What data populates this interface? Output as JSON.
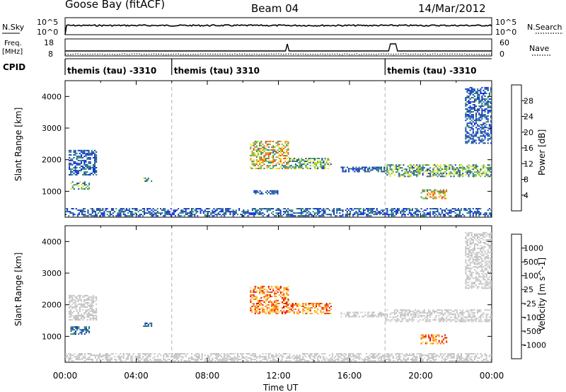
{
  "header": {
    "station": "Goose Bay (fitACF)",
    "beam": "Beam 04",
    "date": "14/Mar/2012"
  },
  "noise_panel": {
    "left_label": "N.Sky",
    "left_ticks": [
      "10^5",
      "10^0"
    ],
    "right_label": "N.Search",
    "right_ticks": [
      "10^5",
      "10^0"
    ]
  },
  "freq_panel": {
    "left_label_line1": "Freq.",
    "left_label_line2": "[MHz]",
    "left_ticks": [
      "18",
      "8"
    ],
    "right_label": "Nave",
    "right_ticks": [
      "60",
      "0"
    ]
  },
  "cpid_panel": {
    "label": "CPID",
    "segments": [
      {
        "start_hour": 0,
        "end_hour": 6,
        "text": "themis (tau) -3310"
      },
      {
        "start_hour": 6,
        "end_hour": 18,
        "text": "themis (tau) 3310"
      },
      {
        "start_hour": 18,
        "end_hour": 24,
        "text": "themis (tau) -3310"
      }
    ]
  },
  "x_axis": {
    "label": "Time UT",
    "ticks": [
      "00:00",
      "04:00",
      "08:00",
      "12:00",
      "16:00",
      "20:00",
      "00:00"
    ],
    "range_hours": [
      0,
      24
    ]
  },
  "chart_data": [
    {
      "type": "heatmap",
      "panel": "power",
      "ylabel": "Slant Range [km]",
      "yticks": [
        "1000",
        "2000",
        "3000",
        "4000"
      ],
      "ylim": [
        180,
        4500
      ],
      "colorbar_label": "Power [dB]",
      "colorbar_ticks": [
        "4",
        "8",
        "12",
        "16",
        "20",
        "24",
        "28"
      ],
      "colorbar_colors": [
        "#1030e0",
        "#204a9a",
        "#2f8a78",
        "#6cc040",
        "#e8e020",
        "#ff9a10",
        "#ff5010",
        "#e01010"
      ],
      "dashed_vertical_lines_hours": [
        6,
        18
      ],
      "echo_regions": [
        {
          "start_hour": 0.2,
          "end_hour": 1.8,
          "range_km": [
            1500,
            2300
          ],
          "value_level": "weak"
        },
        {
          "start_hour": 0.3,
          "end_hour": 1.4,
          "range_km": [
            1050,
            1300
          ],
          "value_level": "moderate"
        },
        {
          "start_hour": 4.3,
          "end_hour": 4.9,
          "range_km": [
            1300,
            1450
          ],
          "value_level": "moderate"
        },
        {
          "start_hour": 10.4,
          "end_hour": 12.6,
          "range_km": [
            1700,
            2600
          ],
          "value_level": "strong"
        },
        {
          "start_hour": 12.6,
          "end_hour": 15.0,
          "range_km": [
            1700,
            2050
          ],
          "value_level": "moderate"
        },
        {
          "start_hour": 10.6,
          "end_hour": 12.0,
          "range_km": [
            900,
            1050
          ],
          "value_level": "weak"
        },
        {
          "start_hour": 15.5,
          "end_hour": 18.0,
          "range_km": [
            1600,
            1800
          ],
          "value_level": "weak"
        },
        {
          "start_hour": 18.0,
          "end_hour": 24.0,
          "range_km": [
            1450,
            1850
          ],
          "value_level": "moderate"
        },
        {
          "start_hour": 20.0,
          "end_hour": 21.5,
          "range_km": [
            750,
            1050
          ],
          "value_level": "strong"
        },
        {
          "start_hour": 22.5,
          "end_hour": 24.0,
          "range_km": [
            2500,
            4300
          ],
          "value_level": "weak"
        },
        {
          "start_hour": 0.0,
          "end_hour": 24.0,
          "range_km": [
            200,
            450
          ],
          "value_level": "weak"
        }
      ]
    },
    {
      "type": "heatmap",
      "panel": "velocity",
      "ylabel": "Slant Range [km]",
      "yticks": [
        "1000",
        "2000",
        "3000",
        "4000"
      ],
      "ylim": [
        180,
        4500
      ],
      "colorbar_label": "Velocity [m s^-1]",
      "colorbar_ticks": [
        "1000",
        "500",
        "100",
        "25",
        "-25",
        "-100",
        "-500",
        "-1000"
      ],
      "colorbar_colors": [
        "#1030d0",
        "#2a6a9a",
        "#2f8a58",
        "#5fc040",
        "#c8c8c8",
        "#f0e040",
        "#ffa020",
        "#ff6010",
        "#e01010"
      ],
      "dashed_vertical_lines_hours": [
        6,
        18
      ],
      "echo_regions": [
        {
          "start_hour": 0.2,
          "end_hour": 1.8,
          "range_km": [
            1500,
            2300
          ],
          "value_level": "ground"
        },
        {
          "start_hour": 0.3,
          "end_hour": 1.4,
          "range_km": [
            1050,
            1300
          ],
          "value_level": "positive"
        },
        {
          "start_hour": 4.3,
          "end_hour": 4.9,
          "range_km": [
            1300,
            1450
          ],
          "value_level": "positive"
        },
        {
          "start_hour": 10.4,
          "end_hour": 12.6,
          "range_km": [
            1700,
            2600
          ],
          "value_level": "negative"
        },
        {
          "start_hour": 12.6,
          "end_hour": 15.0,
          "range_km": [
            1700,
            2050
          ],
          "value_level": "negative"
        },
        {
          "start_hour": 15.5,
          "end_hour": 18.0,
          "range_km": [
            1600,
            1800
          ],
          "value_level": "ground"
        },
        {
          "start_hour": 18.0,
          "end_hour": 24.0,
          "range_km": [
            1450,
            1850
          ],
          "value_level": "ground"
        },
        {
          "start_hour": 20.0,
          "end_hour": 21.5,
          "range_km": [
            750,
            1050
          ],
          "value_level": "negative"
        },
        {
          "start_hour": 22.5,
          "end_hour": 24.0,
          "range_km": [
            2500,
            4300
          ],
          "value_level": "ground"
        },
        {
          "start_hour": 0.0,
          "end_hour": 24.0,
          "range_km": [
            200,
            450
          ],
          "value_level": "ground"
        }
      ]
    }
  ]
}
